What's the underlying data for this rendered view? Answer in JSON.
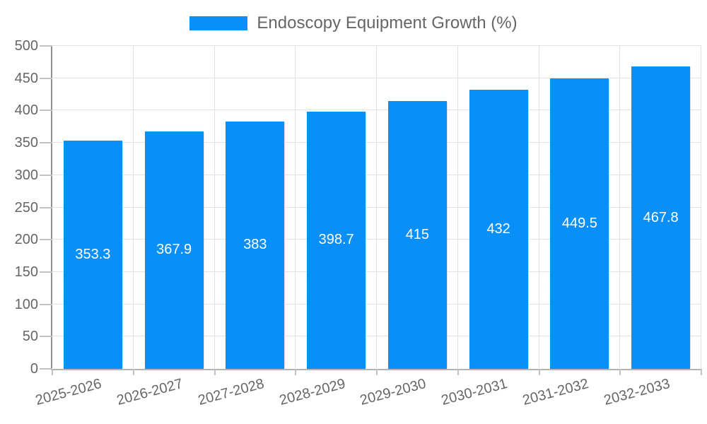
{
  "chart_data": {
    "type": "bar",
    "title": "Endoscopy Equipment Growth (%)",
    "legend_position": "top-center",
    "categories": [
      "2025-2026",
      "2026-2027",
      "2027-2028",
      "2028-2029",
      "2029-2030",
      "2030-2031",
      "2031-2032",
      "2032-2033"
    ],
    "values": [
      353.3,
      367.9,
      383,
      398.7,
      415,
      432,
      449.5,
      467.8
    ],
    "value_label_position": "inside-center",
    "xlabel": "",
    "ylabel": "",
    "ylim": [
      0,
      500
    ],
    "ytick_step": 50,
    "yticks": [
      0,
      50,
      100,
      150,
      200,
      250,
      300,
      350,
      400,
      450,
      500
    ],
    "grid": true,
    "x_label_rotation_deg": -15,
    "colors": {
      "bar": "#0990f8",
      "bar_edge_shadow": "#dcdcdc",
      "grid": "#e2e2e2",
      "axis_y": "#8f8f8f",
      "axis_x": "#b3b3b3",
      "tick": "#c2c2c2",
      "tick_label": "#666666",
      "legend_text": "#666666",
      "value_label": "#ffffff",
      "background": "#ffffff"
    }
  }
}
